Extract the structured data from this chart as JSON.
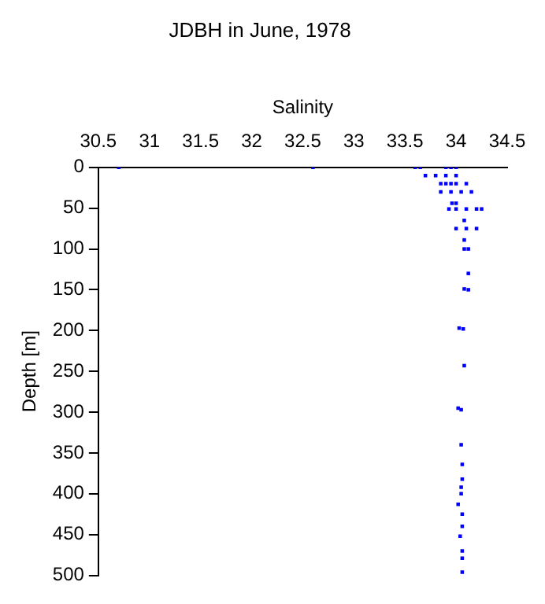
{
  "chart_data": {
    "type": "scatter",
    "title": "JDBH in June, 1978",
    "xlabel": "Salinity",
    "ylabel": "Depth [m]",
    "series": [
      {
        "color": "#0000ff",
        "x": [
          30.7,
          32.6,
          33.6,
          33.65,
          33.9,
          33.95,
          34.0,
          33.7,
          33.8,
          33.9,
          34.0,
          33.85,
          33.9,
          33.95,
          34.0,
          34.1,
          33.85,
          33.95,
          34.05,
          34.15,
          33.96,
          34.0,
          33.93,
          34.0,
          34.1,
          34.2,
          34.25,
          34.08,
          34.0,
          34.1,
          34.2,
          34.08,
          34.08,
          34.12,
          34.12,
          34.08,
          34.12,
          34.03,
          34.07,
          34.08,
          34.02,
          34.05,
          34.05,
          34.06,
          34.06,
          34.05,
          34.05,
          34.02,
          34.06,
          34.06,
          34.04,
          34.06,
          34.06,
          34.06
        ],
        "values": [
          0,
          0,
          0,
          0,
          0,
          0,
          0,
          10,
          10,
          10,
          10,
          20,
          20,
          20,
          20,
          20,
          30,
          30,
          30,
          30,
          44,
          44,
          51,
          51,
          51,
          51,
          51,
          65,
          75,
          75,
          75,
          89,
          100,
          100,
          130,
          149,
          150,
          197,
          198,
          243,
          295,
          297,
          340,
          364,
          382,
          392,
          400,
          413,
          425,
          440,
          452,
          470,
          479,
          496
        ]
      }
    ],
    "xlim": [
      30.5,
      34.5
    ],
    "xticks": [
      30.5,
      31,
      31.5,
      32,
      32.5,
      33,
      33.5,
      34,
      34.5
    ],
    "ylim": [
      500,
      0
    ],
    "yticks": [
      0,
      50,
      100,
      150,
      200,
      250,
      300,
      350,
      400,
      450,
      500
    ],
    "grid": false,
    "legend": false,
    "marker": "square"
  }
}
